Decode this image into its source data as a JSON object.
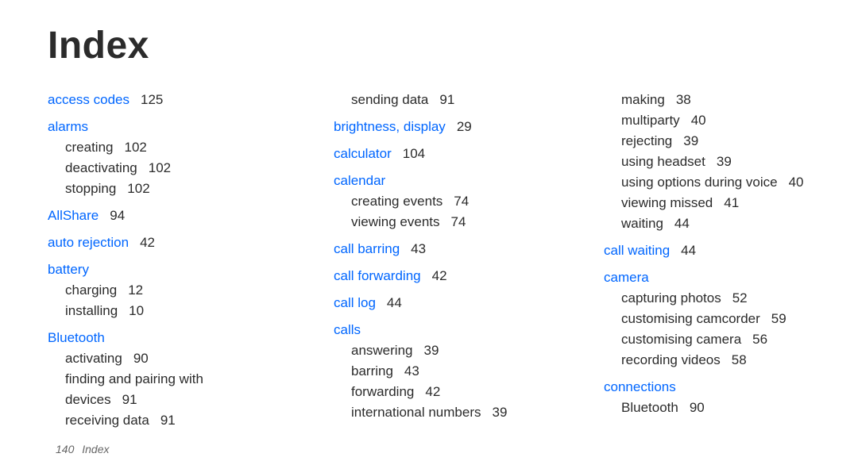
{
  "title": "Index",
  "footer": {
    "page": "140",
    "label": "Index"
  },
  "columns": [
    [
      {
        "t": "leaf",
        "term": "access codes",
        "page": "125"
      },
      {
        "t": "head",
        "term": "alarms"
      },
      {
        "t": "sub",
        "label": "creating",
        "page": "102"
      },
      {
        "t": "sub",
        "label": "deactivating",
        "page": "102"
      },
      {
        "t": "sub",
        "label": "stopping",
        "page": "102"
      },
      {
        "t": "leaf",
        "term": "AllShare",
        "page": "94"
      },
      {
        "t": "leaf",
        "term": "auto rejection",
        "page": "42"
      },
      {
        "t": "head",
        "term": "battery"
      },
      {
        "t": "sub",
        "label": "charging",
        "page": "12"
      },
      {
        "t": "sub",
        "label": "installing",
        "page": "10"
      },
      {
        "t": "head",
        "term": "Bluetooth"
      },
      {
        "t": "sub",
        "label": "activating",
        "page": "90"
      },
      {
        "t": "sub2",
        "label1": "finding and pairing with",
        "label2": "devices",
        "page": "91"
      },
      {
        "t": "sub",
        "label": "receiving data",
        "page": "91"
      }
    ],
    [
      {
        "t": "sub",
        "label": "sending data",
        "page": "91"
      },
      {
        "t": "leaf",
        "term": "brightness, display",
        "page": "29"
      },
      {
        "t": "leaf",
        "term": "calculator",
        "page": "104"
      },
      {
        "t": "head",
        "term": "calendar"
      },
      {
        "t": "sub",
        "label": "creating events",
        "page": "74"
      },
      {
        "t": "sub",
        "label": "viewing events",
        "page": "74"
      },
      {
        "t": "leaf",
        "term": "call barring",
        "page": "43"
      },
      {
        "t": "leaf",
        "term": "call forwarding",
        "page": "42"
      },
      {
        "t": "leaf",
        "term": "call log",
        "page": "44"
      },
      {
        "t": "head",
        "term": "calls"
      },
      {
        "t": "sub",
        "label": "answering",
        "page": "39"
      },
      {
        "t": "sub",
        "label": "barring",
        "page": "43"
      },
      {
        "t": "sub",
        "label": "forwarding",
        "page": "42"
      },
      {
        "t": "sub",
        "label": "international numbers",
        "page": "39"
      }
    ],
    [
      {
        "t": "sub",
        "label": "making",
        "page": "38"
      },
      {
        "t": "sub",
        "label": "multiparty",
        "page": "40"
      },
      {
        "t": "sub",
        "label": "rejecting",
        "page": "39"
      },
      {
        "t": "sub",
        "label": "using headset",
        "page": "39"
      },
      {
        "t": "sub",
        "label": "using options during voice",
        "page": "40"
      },
      {
        "t": "sub",
        "label": "viewing missed",
        "page": "41"
      },
      {
        "t": "sub",
        "label": "waiting",
        "page": "44"
      },
      {
        "t": "leaf",
        "term": "call waiting",
        "page": "44"
      },
      {
        "t": "head",
        "term": "camera"
      },
      {
        "t": "sub",
        "label": "capturing photos",
        "page": "52"
      },
      {
        "t": "sub",
        "label": "customising camcorder",
        "page": "59"
      },
      {
        "t": "sub",
        "label": "customising camera",
        "page": "56"
      },
      {
        "t": "sub",
        "label": "recording videos",
        "page": "58"
      },
      {
        "t": "head",
        "term": "connections"
      },
      {
        "t": "sub",
        "label": "Bluetooth",
        "page": "90"
      }
    ]
  ]
}
